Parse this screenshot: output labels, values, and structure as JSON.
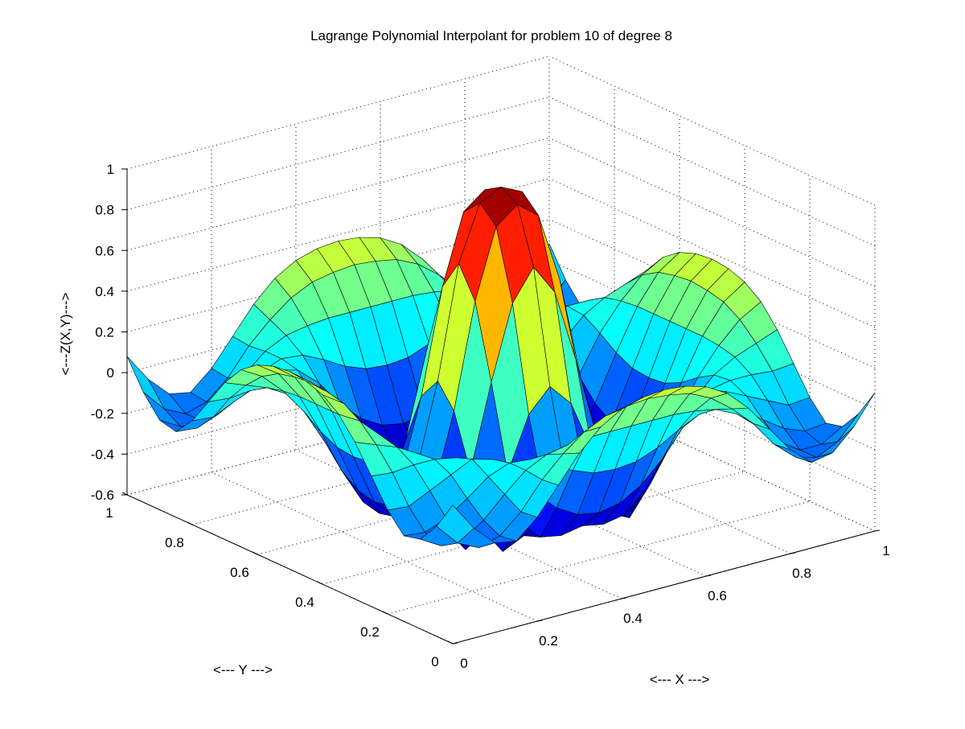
{
  "chart_data": {
    "type": "surface",
    "title": "Lagrange Polynomial Interpolant for problem 10 of degree 8",
    "xlabel": "<--- X --->",
    "ylabel": "<--- Y --->",
    "zlabel": "<---Z(X,Y)--->",
    "xlim": [
      0,
      1
    ],
    "ylim": [
      0,
      1
    ],
    "zlim": [
      -0.6,
      1
    ],
    "xticks": [
      "0",
      "0.2",
      "0.4",
      "0.6",
      "0.8",
      "1"
    ],
    "yticks": [
      "0",
      "0.2",
      "0.4",
      "0.6",
      "0.8",
      "1"
    ],
    "zticks": [
      "-0.6",
      "-0.4",
      "-0.2",
      "0",
      "0.2",
      "0.4",
      "0.6",
      "0.8",
      "1"
    ],
    "grid": true,
    "colormap": "jet",
    "x": [
      0,
      0.05,
      0.1,
      0.15,
      0.2,
      0.25,
      0.3,
      0.35,
      0.4,
      0.45,
      0.5,
      0.55,
      0.6,
      0.65,
      0.7,
      0.75,
      0.8,
      0.85,
      0.9,
      0.95,
      1
    ],
    "y": [
      0,
      0.05,
      0.1,
      0.15,
      0.2,
      0.25,
      0.3,
      0.35,
      0.4,
      0.45,
      0.5,
      0.55,
      0.6,
      0.65,
      0.7,
      0.75,
      0.8,
      0.85,
      0.9,
      0.95,
      1
    ],
    "z": [
      [
        0.08,
        -0.06,
        -0.16,
        -0.18,
        -0.09,
        0.04,
        0.17,
        0.27,
        0.33,
        0.36,
        0.37,
        0.36,
        0.33,
        0.27,
        0.17,
        0.04,
        -0.09,
        -0.18,
        -0.16,
        -0.06,
        0.08
      ],
      [
        -0.06,
        -0.17,
        -0.22,
        -0.19,
        -0.1,
        0.03,
        0.13,
        0.21,
        0.26,
        0.28,
        0.29,
        0.28,
        0.26,
        0.21,
        0.13,
        0.03,
        -0.1,
        -0.19,
        -0.22,
        -0.17,
        -0.06
      ],
      [
        -0.16,
        -0.22,
        -0.22,
        -0.15,
        -0.05,
        0.04,
        0.09,
        0.11,
        0.12,
        0.12,
        0.12,
        0.12,
        0.12,
        0.11,
        0.09,
        0.04,
        -0.05,
        -0.15,
        -0.22,
        -0.22,
        -0.16
      ],
      [
        -0.18,
        -0.19,
        -0.15,
        -0.08,
        0.0,
        0.04,
        0.03,
        -0.02,
        -0.08,
        -0.12,
        -0.13,
        -0.12,
        -0.08,
        -0.02,
        0.03,
        0.04,
        0.0,
        -0.08,
        -0.15,
        -0.19,
        -0.18
      ],
      [
        -0.09,
        -0.1,
        -0.05,
        0.0,
        0.05,
        0.02,
        -0.07,
        -0.2,
        -0.3,
        -0.36,
        -0.38,
        -0.36,
        -0.3,
        -0.2,
        -0.07,
        0.02,
        0.05,
        0.0,
        -0.05,
        -0.1,
        -0.09
      ],
      [
        0.04,
        0.03,
        0.04,
        0.04,
        0.02,
        -0.08,
        -0.23,
        -0.38,
        -0.48,
        -0.5,
        -0.48,
        -0.5,
        -0.48,
        -0.38,
        -0.23,
        -0.08,
        0.02,
        0.04,
        0.04,
        0.03,
        0.04
      ],
      [
        0.17,
        0.13,
        0.09,
        0.03,
        -0.07,
        -0.23,
        -0.42,
        -0.56,
        -0.51,
        -0.36,
        -0.28,
        -0.36,
        -0.51,
        -0.56,
        -0.42,
        -0.23,
        -0.07,
        0.03,
        0.09,
        0.13,
        0.17
      ],
      [
        0.27,
        0.21,
        0.11,
        -0.02,
        -0.2,
        -0.38,
        -0.56,
        -0.49,
        -0.24,
        0.02,
        0.13,
        0.02,
        -0.24,
        -0.49,
        -0.56,
        -0.38,
        -0.2,
        -0.02,
        0.11,
        0.21,
        0.27
      ],
      [
        0.33,
        0.26,
        0.12,
        -0.08,
        -0.3,
        -0.48,
        -0.51,
        -0.24,
        0.17,
        0.53,
        0.68,
        0.53,
        0.17,
        -0.24,
        -0.51,
        -0.48,
        -0.3,
        -0.08,
        0.12,
        0.26,
        0.33
      ],
      [
        0.36,
        0.28,
        0.12,
        -0.12,
        -0.36,
        -0.5,
        -0.36,
        0.02,
        0.53,
        0.87,
        0.95,
        0.87,
        0.53,
        0.02,
        -0.36,
        -0.5,
        -0.36,
        -0.12,
        0.12,
        0.28,
        0.36
      ],
      [
        0.37,
        0.29,
        0.12,
        -0.13,
        -0.38,
        -0.48,
        -0.28,
        0.13,
        0.68,
        0.95,
        1.0,
        0.95,
        0.68,
        0.13,
        -0.28,
        -0.48,
        -0.38,
        -0.13,
        0.12,
        0.29,
        0.37
      ],
      [
        0.36,
        0.28,
        0.12,
        -0.12,
        -0.36,
        -0.5,
        -0.36,
        0.02,
        0.53,
        0.87,
        0.95,
        0.87,
        0.53,
        0.02,
        -0.36,
        -0.5,
        -0.36,
        -0.12,
        0.12,
        0.28,
        0.36
      ],
      [
        0.33,
        0.26,
        0.12,
        -0.08,
        -0.3,
        -0.48,
        -0.51,
        -0.24,
        0.17,
        0.53,
        0.68,
        0.53,
        0.17,
        -0.24,
        -0.51,
        -0.48,
        -0.3,
        -0.08,
        0.12,
        0.26,
        0.33
      ],
      [
        0.27,
        0.21,
        0.11,
        -0.02,
        -0.2,
        -0.38,
        -0.56,
        -0.49,
        -0.24,
        0.02,
        0.13,
        0.02,
        -0.24,
        -0.49,
        -0.56,
        -0.38,
        -0.2,
        -0.02,
        0.11,
        0.21,
        0.27
      ],
      [
        0.17,
        0.13,
        0.09,
        0.03,
        -0.07,
        -0.23,
        -0.42,
        -0.56,
        -0.51,
        -0.36,
        -0.28,
        -0.36,
        -0.51,
        -0.56,
        -0.42,
        -0.23,
        -0.07,
        0.03,
        0.09,
        0.13,
        0.17
      ],
      [
        0.04,
        0.03,
        0.04,
        0.04,
        0.02,
        -0.08,
        -0.23,
        -0.38,
        -0.48,
        -0.5,
        -0.48,
        -0.5,
        -0.48,
        -0.38,
        -0.23,
        -0.08,
        0.02,
        0.04,
        0.04,
        0.03,
        0.04
      ],
      [
        -0.09,
        -0.1,
        -0.05,
        0.0,
        0.05,
        0.02,
        -0.07,
        -0.2,
        -0.3,
        -0.36,
        -0.38,
        -0.36,
        -0.3,
        -0.2,
        -0.07,
        0.02,
        0.05,
        0.0,
        -0.05,
        -0.1,
        -0.09
      ],
      [
        -0.18,
        -0.19,
        -0.15,
        -0.08,
        0.0,
        0.04,
        0.03,
        -0.02,
        -0.08,
        -0.12,
        -0.13,
        -0.12,
        -0.08,
        -0.02,
        0.03,
        0.04,
        0.0,
        -0.08,
        -0.15,
        -0.19,
        -0.18
      ],
      [
        -0.16,
        -0.22,
        -0.22,
        -0.15,
        -0.05,
        0.04,
        0.09,
        0.11,
        0.12,
        0.12,
        0.12,
        0.12,
        0.12,
        0.11,
        0.09,
        0.04,
        -0.05,
        -0.15,
        -0.22,
        -0.22,
        -0.16
      ],
      [
        -0.06,
        -0.17,
        -0.22,
        -0.19,
        -0.1,
        0.03,
        0.13,
        0.21,
        0.26,
        0.28,
        0.29,
        0.28,
        0.26,
        0.21,
        0.13,
        0.03,
        -0.1,
        -0.19,
        -0.22,
        -0.17,
        -0.06
      ],
      [
        0.08,
        -0.06,
        -0.16,
        -0.18,
        -0.09,
        0.04,
        0.17,
        0.27,
        0.33,
        0.36,
        0.37,
        0.36,
        0.33,
        0.27,
        0.17,
        0.04,
        -0.09,
        -0.18,
        -0.16,
        -0.06,
        0.08
      ]
    ]
  }
}
